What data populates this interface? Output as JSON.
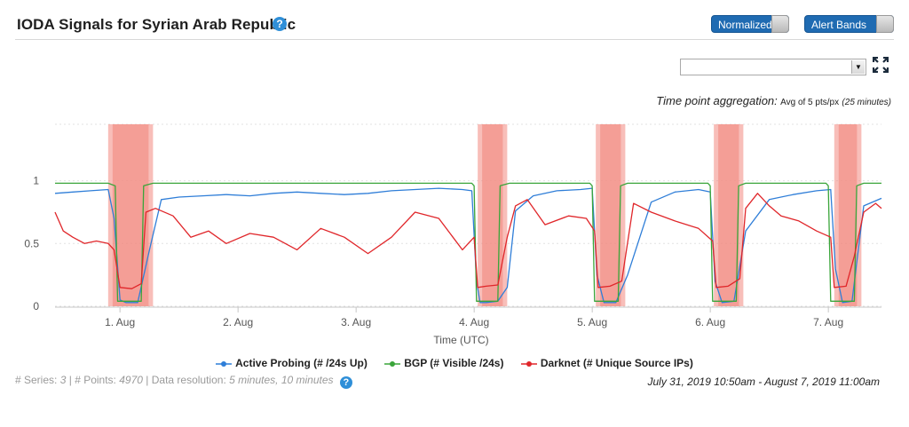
{
  "header": {
    "title": "IODA Signals for Syrian Arab Republic",
    "help_glyph": "?",
    "normalized_label": "Normalized",
    "alert_bands_label": "Alert Bands"
  },
  "controls": {
    "select_value": "",
    "aggregation_label": "Time point aggregation:",
    "aggregation_value": "Avg of 5 pts/px",
    "aggregation_detail": "(25 minutes)"
  },
  "colors": {
    "active_probing": "#2f7ed8",
    "bgp": "#3aa53a",
    "darknet": "#e0262a",
    "alert_band": "#f2897f",
    "accent": "#1f6bb2"
  },
  "chart_data": {
    "type": "line",
    "xlabel": "Time (UTC)",
    "x_ticks": [
      "1. Aug",
      "2. Aug",
      "3. Aug",
      "4. Aug",
      "5. Aug",
      "6. Aug",
      "7. Aug"
    ],
    "y_ticks": [
      "0",
      "0.5",
      "1"
    ],
    "ylim": [
      0,
      1.45
    ],
    "xlim": [
      -0.55,
      6.45
    ],
    "grid": true,
    "legend": "bottom",
    "alert_bands": [
      [
        -0.1,
        0.28
      ],
      [
        3.03,
        3.28
      ],
      [
        4.03,
        4.28
      ],
      [
        5.03,
        5.28
      ],
      [
        6.05,
        6.28
      ]
    ],
    "series": [
      {
        "name": "Active Probing (# /24s Up)",
        "color": "#2f7ed8",
        "x": [
          -0.55,
          -0.4,
          -0.25,
          -0.1,
          -0.05,
          0.0,
          0.05,
          0.1,
          0.15,
          0.25,
          0.35,
          0.5,
          0.7,
          0.9,
          1.1,
          1.3,
          1.5,
          1.7,
          1.9,
          2.1,
          2.3,
          2.5,
          2.7,
          2.9,
          2.98,
          3.02,
          3.05,
          3.1,
          3.2,
          3.28,
          3.35,
          3.5,
          3.7,
          3.9,
          4.0,
          4.04,
          4.1,
          4.2,
          4.3,
          4.5,
          4.7,
          4.9,
          5.0,
          5.04,
          5.1,
          5.2,
          5.3,
          5.5,
          5.7,
          5.9,
          6.02,
          6.06,
          6.12,
          6.2,
          6.3,
          6.45
        ],
        "y": [
          0.9,
          0.91,
          0.92,
          0.93,
          0.7,
          0.05,
          0.03,
          0.03,
          0.03,
          0.45,
          0.85,
          0.87,
          0.88,
          0.89,
          0.88,
          0.9,
          0.91,
          0.9,
          0.89,
          0.9,
          0.92,
          0.93,
          0.94,
          0.93,
          0.92,
          0.2,
          0.03,
          0.03,
          0.04,
          0.15,
          0.76,
          0.88,
          0.92,
          0.93,
          0.94,
          0.25,
          0.03,
          0.03,
          0.25,
          0.83,
          0.91,
          0.93,
          0.91,
          0.2,
          0.03,
          0.04,
          0.6,
          0.85,
          0.89,
          0.92,
          0.93,
          0.3,
          0.03,
          0.04,
          0.8,
          0.86
        ]
      },
      {
        "name": "BGP (# Visible /24s)",
        "color": "#3aa53a",
        "x": [
          -0.55,
          -0.1,
          -0.04,
          -0.02,
          0.18,
          0.2,
          0.28,
          0.3,
          2.98,
          3.0,
          3.02,
          3.2,
          3.22,
          3.3,
          3.35,
          3.98,
          4.0,
          4.02,
          4.22,
          4.24,
          4.3,
          4.32,
          4.98,
          5.0,
          5.02,
          5.22,
          5.24,
          5.3,
          5.32,
          5.98,
          6.0,
          6.02,
          6.22,
          6.24,
          6.3,
          6.45
        ],
        "y": [
          0.98,
          0.98,
          0.96,
          0.04,
          0.04,
          0.96,
          0.98,
          0.98,
          0.98,
          0.96,
          0.04,
          0.04,
          0.96,
          0.98,
          0.98,
          0.98,
          0.96,
          0.04,
          0.04,
          0.96,
          0.98,
          0.98,
          0.98,
          0.96,
          0.04,
          0.04,
          0.96,
          0.98,
          0.98,
          0.98,
          0.96,
          0.04,
          0.04,
          0.96,
          0.98,
          0.98
        ]
      },
      {
        "name": "Darknet (# Unique Source IPs)",
        "color": "#e0262a",
        "x": [
          -0.55,
          -0.48,
          -0.4,
          -0.3,
          -0.2,
          -0.1,
          -0.05,
          0.0,
          0.1,
          0.18,
          0.22,
          0.3,
          0.45,
          0.6,
          0.75,
          0.9,
          1.1,
          1.3,
          1.5,
          1.7,
          1.9,
          2.1,
          2.3,
          2.5,
          2.7,
          2.9,
          3.0,
          3.03,
          3.1,
          3.2,
          3.28,
          3.35,
          3.45,
          3.6,
          3.8,
          3.95,
          4.02,
          4.05,
          4.15,
          4.25,
          4.35,
          4.5,
          4.7,
          4.9,
          5.02,
          5.05,
          5.15,
          5.25,
          5.3,
          5.4,
          5.5,
          5.6,
          5.75,
          5.9,
          6.02,
          6.05,
          6.15,
          6.22,
          6.3,
          6.4,
          6.45
        ],
        "y": [
          0.75,
          0.6,
          0.55,
          0.5,
          0.52,
          0.5,
          0.45,
          0.15,
          0.14,
          0.18,
          0.75,
          0.78,
          0.72,
          0.55,
          0.6,
          0.5,
          0.58,
          0.55,
          0.45,
          0.62,
          0.55,
          0.42,
          0.55,
          0.75,
          0.7,
          0.45,
          0.55,
          0.15,
          0.16,
          0.17,
          0.55,
          0.8,
          0.85,
          0.65,
          0.72,
          0.7,
          0.6,
          0.15,
          0.16,
          0.2,
          0.82,
          0.75,
          0.68,
          0.62,
          0.52,
          0.15,
          0.16,
          0.22,
          0.78,
          0.9,
          0.8,
          0.72,
          0.68,
          0.6,
          0.55,
          0.15,
          0.16,
          0.4,
          0.75,
          0.82,
          0.78
        ]
      }
    ]
  },
  "footer": {
    "series_label": "# Series:",
    "series_count": "3",
    "points_label": "# Points:",
    "points_count": "4970",
    "resolution_label": "Data resolution:",
    "resolution_value": "5 minutes, 10 minutes",
    "range": "July 31, 2019 10:50am - August 7, 2019 11:00am"
  }
}
